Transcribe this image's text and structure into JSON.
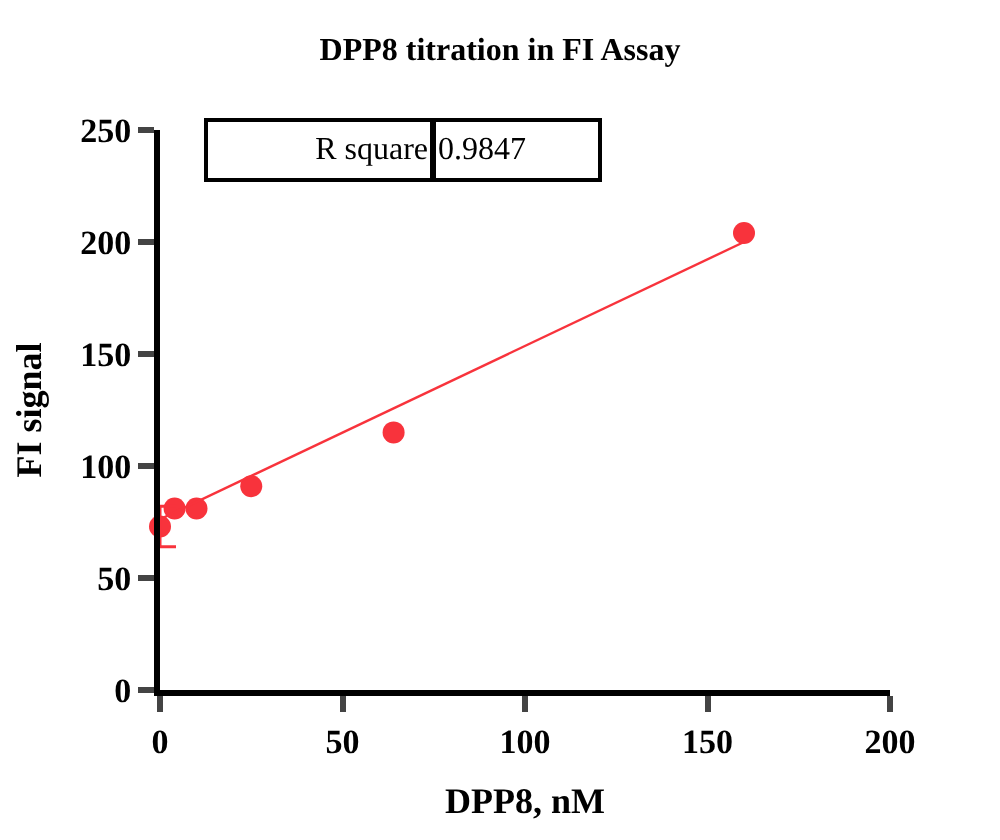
{
  "chart_data": {
    "type": "scatter",
    "title": "DPP8 titration in FI Assay",
    "xlabel": "DPP8, nM",
    "ylabel": "FI signal",
    "annotations": [
      "R square",
      "0.9847"
    ],
    "series": [
      {
        "color": "#f8333c",
        "x": [
          0,
          4,
          10,
          25,
          64,
          160
        ],
        "values": [
          73,
          81,
          81,
          91,
          115,
          204
        ],
        "errors": [
          9,
          null,
          null,
          null,
          null,
          null
        ],
        "marker": "circle"
      },
      {
        "type": "line",
        "color": "#f8333c",
        "x": [
          1,
          160
        ],
        "values": [
          77,
          200
        ],
        "marker": "none"
      }
    ],
    "xlim": [
      0,
      200
    ],
    "xticks": [
      0,
      50,
      100,
      150,
      200
    ],
    "ylim": [
      0,
      250
    ],
    "yticks": [
      0,
      50,
      100,
      150,
      200,
      250
    ]
  }
}
